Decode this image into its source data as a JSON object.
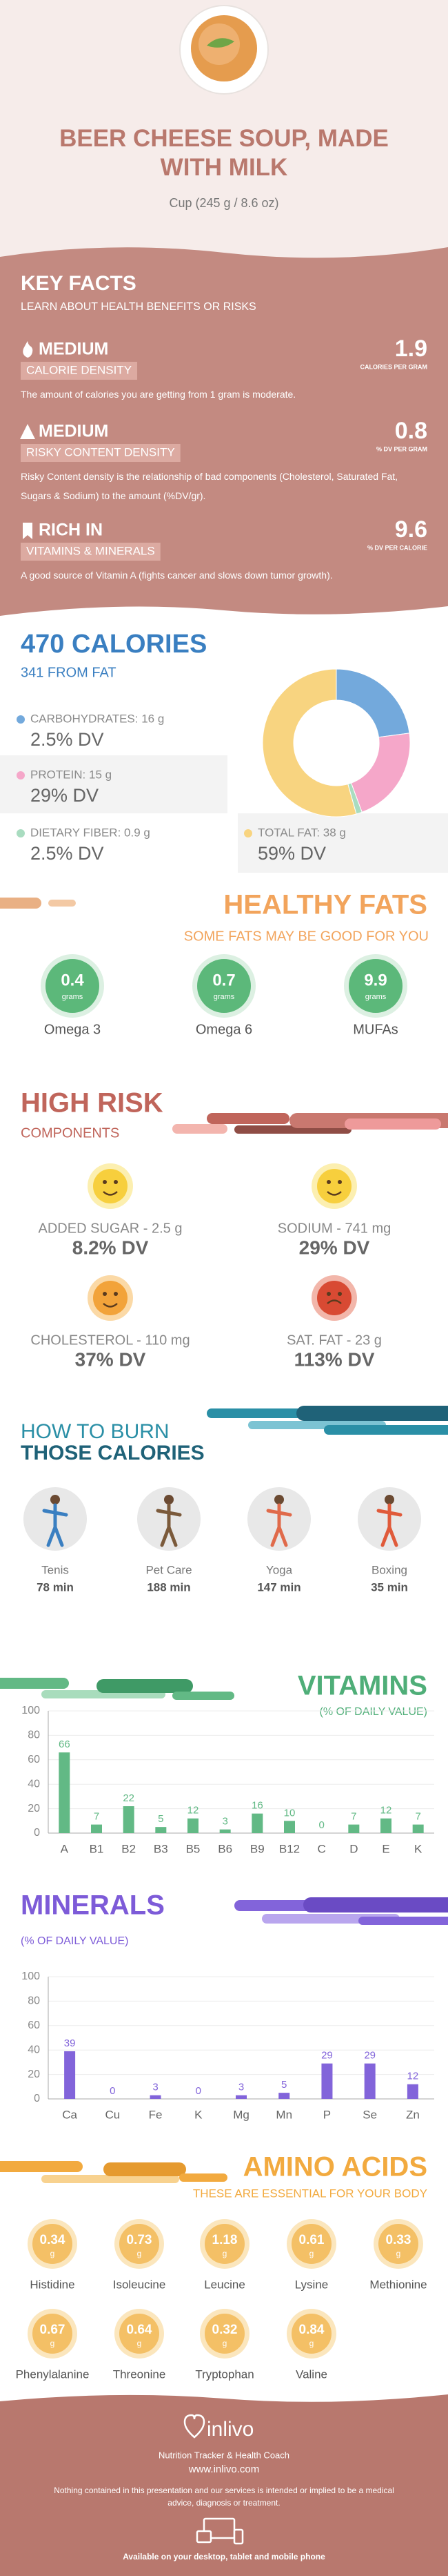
{
  "header": {
    "title": "BEER CHEESE SOUP, MADE WITH MILK",
    "serving": "Cup (245 g / 8.6 oz)"
  },
  "key_facts": {
    "title": "KEY FACTS",
    "subtitle": "LEARN ABOUT HEALTH BENEFITS OR RISKS",
    "items": [
      {
        "level": "MEDIUM",
        "label": "CALORIE DENSITY",
        "value": 1.9,
        "unit": "CALORIES PER GRAM",
        "text": "The amount of calories you are getting from 1 gram is moderate.",
        "icon": "flame"
      },
      {
        "level": "MEDIUM",
        "label": "RISKY CONTENT DENSITY",
        "value": 0.8,
        "unit": "% DV PER GRAM",
        "text": "Risky Content density is the relationship of bad components (Cholesterol, Saturated Fat, Sugars & Sodium) to the amount (%DV/gr).",
        "icon": "warning"
      },
      {
        "level": "RICH IN",
        "label": "VITAMINS & MINERALS",
        "value": 9.6,
        "unit": "% DV PER CALORIE",
        "text": "A good source of Vitamin A (fights cancer and slows down tumor growth).",
        "icon": "ribbon"
      }
    ]
  },
  "calories": {
    "title": "470 CALORIES",
    "subtitle": "341 FROM FAT"
  },
  "healthy_fats": {
    "title": "HEALTHY FATS",
    "subtitle": "SOME FATS MAY BE GOOD FOR YOU",
    "items": [
      {
        "value": 0.4,
        "unit": "grams",
        "name": "Omega 3"
      },
      {
        "value": 0.7,
        "unit": "grams",
        "name": "Omega 6"
      },
      {
        "value": 9.9,
        "unit": "grams",
        "name": "MUFAs"
      }
    ]
  },
  "high_risk": {
    "title": "HIGH RISK",
    "subtitle": "COMPONENTS",
    "items": [
      {
        "label": "ADDED SUGAR - 2.5 g",
        "dv": "8.2% DV",
        "face": "happy"
      },
      {
        "label": "SODIUM - 741 mg",
        "dv": "29% DV",
        "face": "happy"
      },
      {
        "label": "CHOLESTEROL - 110 mg",
        "dv": "37% DV",
        "face": "neutral"
      },
      {
        "label": "SAT. FAT - 23 g",
        "dv": "113% DV",
        "face": "sad"
      }
    ]
  },
  "burn": {
    "title_line1": "HOW TO BURN",
    "title_line2": "THOSE CALORIES",
    "activities": [
      {
        "name": "Tenis",
        "time": "78 min"
      },
      {
        "name": "Pet Care",
        "time": "188 min"
      },
      {
        "name": "Yoga",
        "time": "147 min"
      },
      {
        "name": "Boxing",
        "time": "35 min"
      }
    ]
  },
  "chart_data": [
    {
      "type": "pie",
      "donut": true,
      "categories": [
        "CARBOHYDRATES: 16 g",
        "PROTEIN: 15 g",
        "DIETARY FIBER: 0.9 g",
        "TOTAL FAT: 38 g"
      ],
      "values": [
        16,
        15,
        0.9,
        38
      ],
      "daily_values": [
        "2.5% DV",
        "29% DV",
        "2.5% DV",
        "59% DV"
      ],
      "colors": [
        "#73a9dc",
        "#f5a7c9",
        "#a9dcc0",
        "#f8d480"
      ]
    },
    {
      "type": "bar",
      "title": "VITAMINS",
      "subtitle": "(% OF DAILY VALUE)",
      "categories": [
        "A",
        "B1",
        "B2",
        "B3",
        "B5",
        "B6",
        "B9",
        "B12",
        "C",
        "D",
        "E",
        "K"
      ],
      "values": [
        66,
        7,
        22,
        5,
        12,
        3,
        16,
        10,
        0,
        7,
        12,
        7
      ],
      "ylim": [
        0,
        100
      ],
      "yticks": [
        0,
        20,
        40,
        60,
        80,
        100
      ],
      "color": "#62b985",
      "grid": true
    },
    {
      "type": "bar",
      "title": "MINERALS",
      "subtitle": "(% OF DAILY VALUE)",
      "categories": [
        "Ca",
        "Cu",
        "Fe",
        "K",
        "Mg",
        "Mn",
        "P",
        "Se",
        "Zn"
      ],
      "values": [
        39,
        0,
        3,
        0,
        3,
        5,
        29,
        29,
        12
      ],
      "ylim": [
        0,
        100
      ],
      "yticks": [
        0,
        20,
        40,
        60,
        80,
        100
      ],
      "color": "#8264da",
      "grid": true
    }
  ],
  "amino_acids": {
    "title": "AMINO ACIDS",
    "subtitle": "THESE ARE ESSENTIAL FOR YOUR BODY",
    "items": [
      {
        "value": 0.34,
        "unit": "g",
        "name": "Histidine"
      },
      {
        "value": 0.73,
        "unit": "g",
        "name": "Isoleucine"
      },
      {
        "value": 1.18,
        "unit": "g",
        "name": "Leucine"
      },
      {
        "value": 0.61,
        "unit": "g",
        "name": "Lysine"
      },
      {
        "value": 0.33,
        "unit": "g",
        "name": "Methionine"
      },
      {
        "value": 0.67,
        "unit": "g",
        "name": "Phenylalanine"
      },
      {
        "value": 0.64,
        "unit": "g",
        "name": "Threonine"
      },
      {
        "value": 0.32,
        "unit": "g",
        "name": "Tryptophan"
      },
      {
        "value": 0.84,
        "unit": "g",
        "name": "Valine"
      }
    ]
  },
  "footer": {
    "brand": "inlivo",
    "tagline": "Nutrition Tracker & Health Coach",
    "url": "www.inlivo.com",
    "disclaimer": "Nothing contained in this presentation and our services is intended or implied to be a medical advice, diagnosis or treatment.",
    "available": "Available on your desktop, tablet and mobile phone"
  }
}
